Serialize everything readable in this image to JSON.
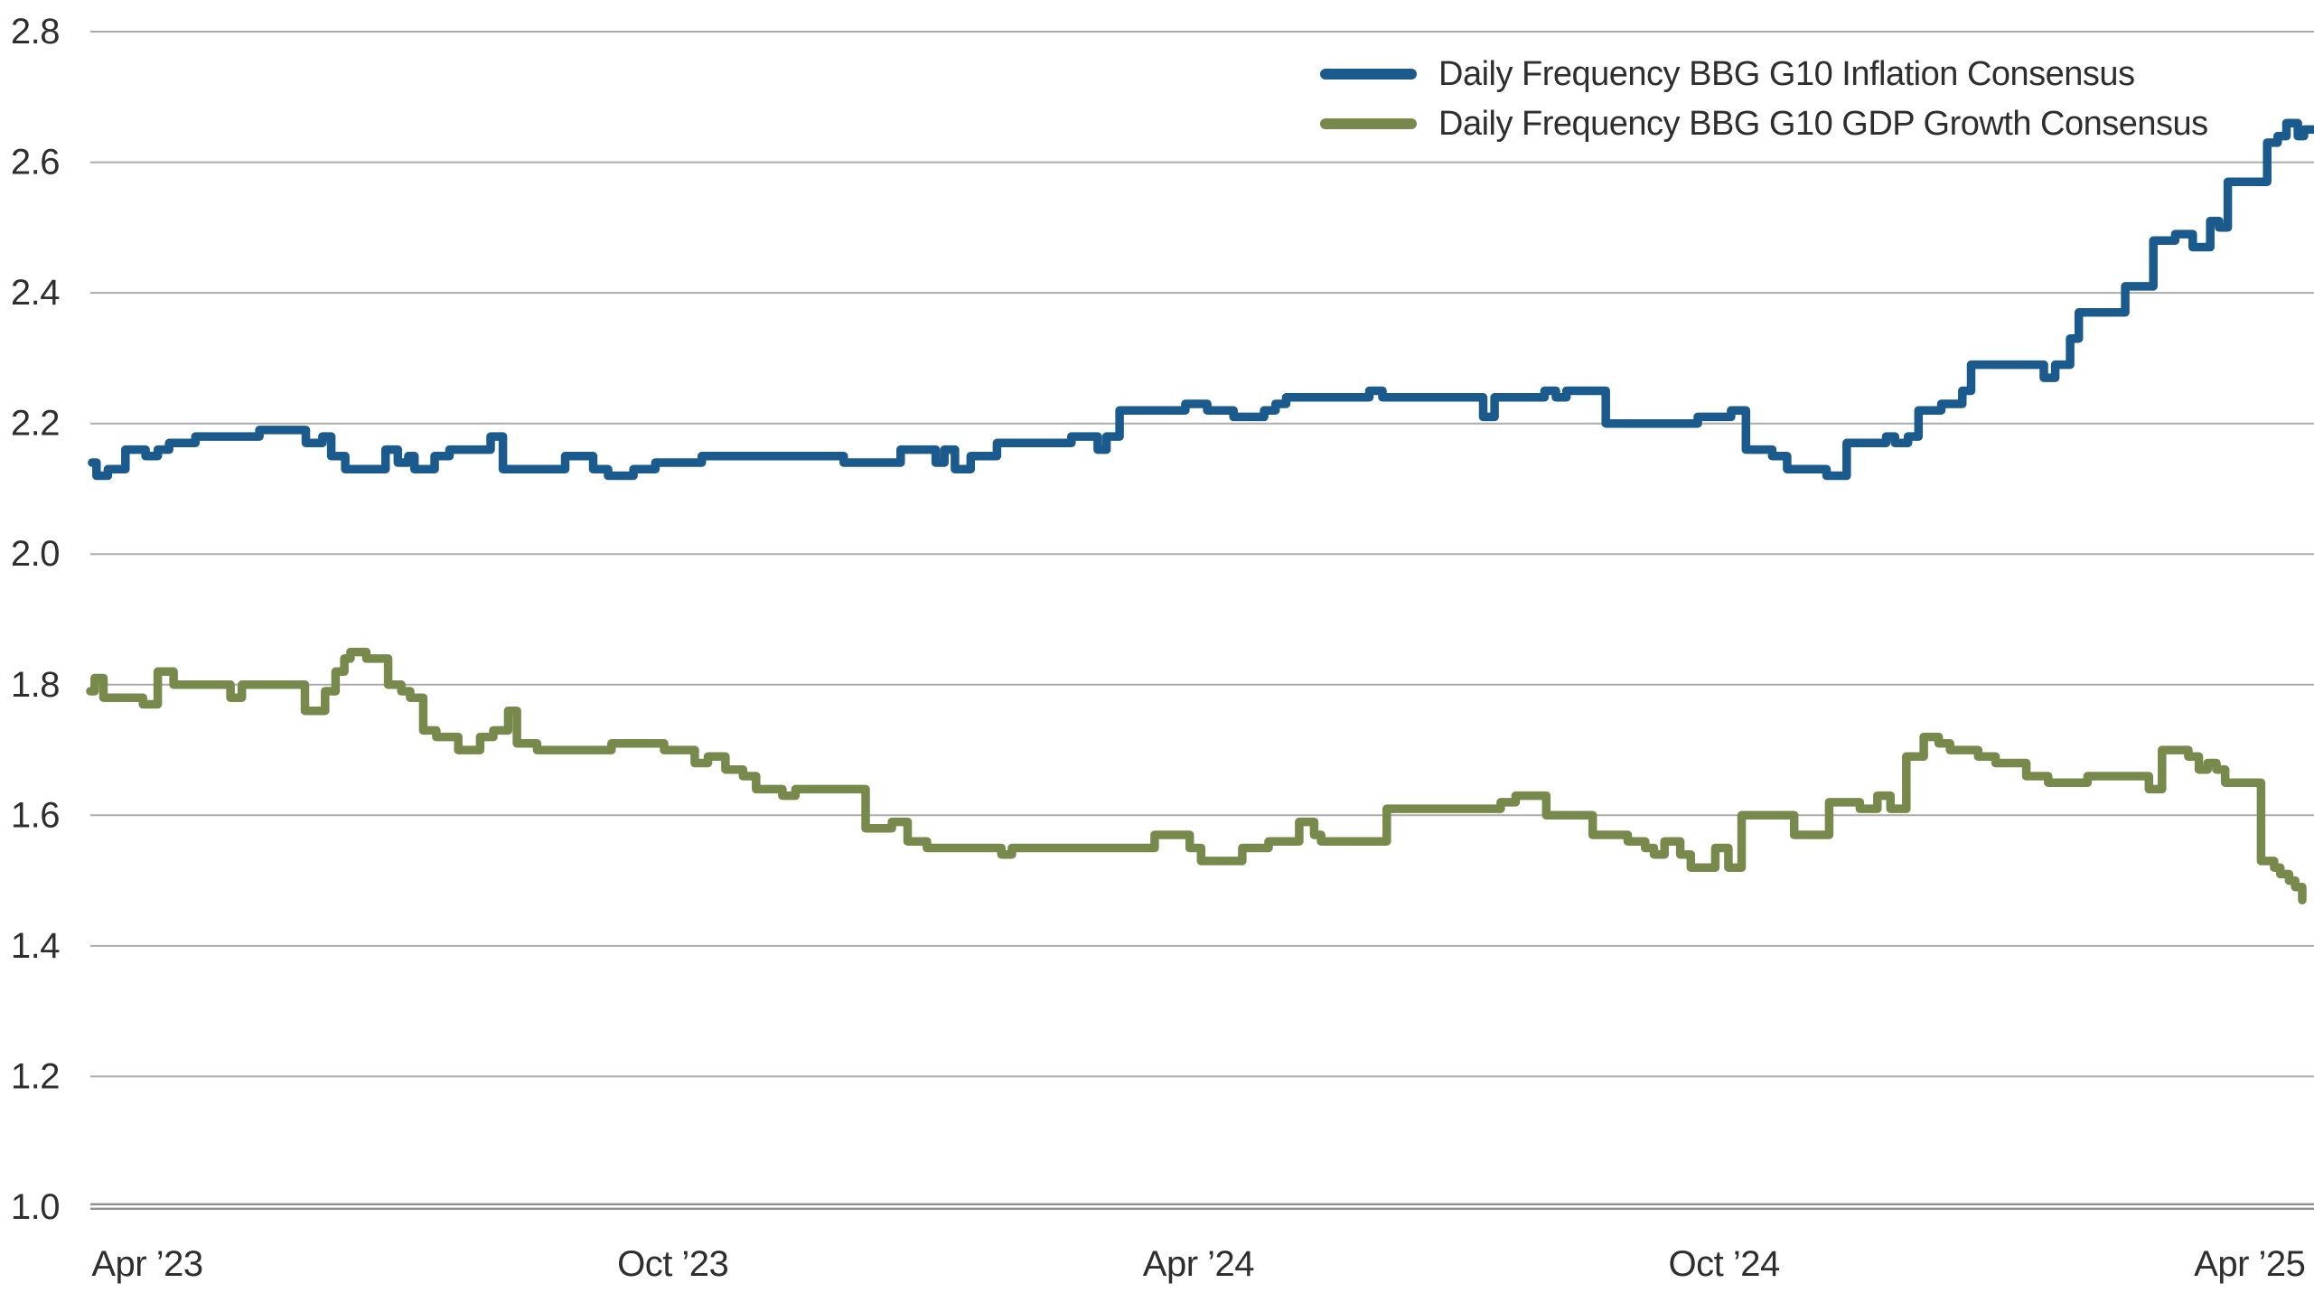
{
  "chart_data": {
    "type": "line",
    "title": "",
    "line_style": "step-after",
    "grid": "horizontal",
    "legend_position": "top-right",
    "x_axis": {
      "unit": "months from Apr 2023",
      "range": [
        -0.65,
        24.73
      ],
      "tick_months": [
        0,
        6,
        12,
        18,
        24
      ],
      "tick_labels": [
        "Apr ’23",
        "Oct ’23",
        "Apr ’24",
        "Oct ’24",
        "Apr ’25"
      ]
    },
    "y_axis": {
      "range": [
        1.0,
        2.8
      ],
      "ticks": [
        1.0,
        1.2,
        1.4,
        1.6,
        1.8,
        2.0,
        2.2,
        2.4,
        2.6,
        2.8
      ],
      "tick_labels": [
        "1.0",
        "1.2",
        "1.4",
        "1.6",
        "1.8",
        "2.0",
        "2.2",
        "2.4",
        "2.6",
        "2.8"
      ]
    },
    "series": [
      {
        "name": "Daily Frequency BBG G10 Inflation Consensus",
        "color": "#1a5a8c",
        "points": [
          [
            -0.63,
            2.14
          ],
          [
            -0.58,
            2.12
          ],
          [
            -0.45,
            2.13
          ],
          [
            -0.25,
            2.16
          ],
          [
            -0.02,
            2.15
          ],
          [
            0.12,
            2.16
          ],
          [
            0.25,
            2.17
          ],
          [
            0.55,
            2.18
          ],
          [
            1.28,
            2.19
          ],
          [
            1.81,
            2.17
          ],
          [
            2.0,
            2.18
          ],
          [
            2.1,
            2.15
          ],
          [
            2.26,
            2.13
          ],
          [
            2.72,
            2.16
          ],
          [
            2.86,
            2.14
          ],
          [
            2.98,
            2.15
          ],
          [
            3.05,
            2.13
          ],
          [
            3.28,
            2.15
          ],
          [
            3.45,
            2.16
          ],
          [
            3.92,
            2.18
          ],
          [
            4.06,
            2.13
          ],
          [
            4.77,
            2.15
          ],
          [
            5.09,
            2.13
          ],
          [
            5.26,
            2.12
          ],
          [
            5.55,
            2.13
          ],
          [
            5.8,
            2.14
          ],
          [
            6.33,
            2.15
          ],
          [
            7.95,
            2.14
          ],
          [
            8.6,
            2.16
          ],
          [
            9.0,
            2.14
          ],
          [
            9.1,
            2.16
          ],
          [
            9.22,
            2.13
          ],
          [
            9.4,
            2.15
          ],
          [
            9.7,
            2.17
          ],
          [
            10.55,
            2.18
          ],
          [
            10.85,
            2.16
          ],
          [
            10.95,
            2.18
          ],
          [
            11.1,
            2.22
          ],
          [
            11.85,
            2.23
          ],
          [
            12.1,
            2.22
          ],
          [
            12.4,
            2.21
          ],
          [
            12.75,
            2.22
          ],
          [
            12.88,
            2.23
          ],
          [
            13.0,
            2.24
          ],
          [
            13.95,
            2.25
          ],
          [
            14.1,
            2.24
          ],
          [
            15.25,
            2.21
          ],
          [
            15.38,
            2.24
          ],
          [
            15.95,
            2.25
          ],
          [
            16.08,
            2.24
          ],
          [
            16.2,
            2.25
          ],
          [
            16.65,
            2.2
          ],
          [
            17.7,
            2.21
          ],
          [
            18.08,
            2.22
          ],
          [
            18.25,
            2.16
          ],
          [
            18.55,
            2.15
          ],
          [
            18.72,
            2.13
          ],
          [
            19.17,
            2.12
          ],
          [
            19.4,
            2.17
          ],
          [
            19.85,
            2.18
          ],
          [
            19.95,
            2.17
          ],
          [
            20.1,
            2.18
          ],
          [
            20.22,
            2.22
          ],
          [
            20.48,
            2.23
          ],
          [
            20.72,
            2.25
          ],
          [
            20.82,
            2.29
          ],
          [
            21.65,
            2.27
          ],
          [
            21.78,
            2.29
          ],
          [
            21.95,
            2.33
          ],
          [
            22.05,
            2.37
          ],
          [
            22.58,
            2.41
          ],
          [
            22.9,
            2.48
          ],
          [
            23.15,
            2.49
          ],
          [
            23.35,
            2.47
          ],
          [
            23.55,
            2.51
          ],
          [
            23.65,
            2.5
          ],
          [
            23.75,
            2.57
          ],
          [
            24.2,
            2.63
          ],
          [
            24.32,
            2.64
          ],
          [
            24.42,
            2.66
          ],
          [
            24.55,
            2.64
          ],
          [
            24.62,
            2.65
          ],
          [
            24.72,
            2.65
          ]
        ]
      },
      {
        "name": "Daily Frequency BBG G10 GDP Growth Consensus",
        "color": "#78894c",
        "points": [
          [
            -0.65,
            1.79
          ],
          [
            -0.6,
            1.81
          ],
          [
            -0.5,
            1.78
          ],
          [
            -0.05,
            1.77
          ],
          [
            0.12,
            1.82
          ],
          [
            0.3,
            1.8
          ],
          [
            0.95,
            1.78
          ],
          [
            1.08,
            1.8
          ],
          [
            1.8,
            1.76
          ],
          [
            2.03,
            1.79
          ],
          [
            2.15,
            1.82
          ],
          [
            2.25,
            1.84
          ],
          [
            2.32,
            1.85
          ],
          [
            2.5,
            1.84
          ],
          [
            2.75,
            1.8
          ],
          [
            2.9,
            1.79
          ],
          [
            3.0,
            1.78
          ],
          [
            3.15,
            1.73
          ],
          [
            3.3,
            1.72
          ],
          [
            3.55,
            1.7
          ],
          [
            3.8,
            1.72
          ],
          [
            3.95,
            1.73
          ],
          [
            4.12,
            1.76
          ],
          [
            4.22,
            1.71
          ],
          [
            4.45,
            1.7
          ],
          [
            5.3,
            1.71
          ],
          [
            5.9,
            1.7
          ],
          [
            6.25,
            1.68
          ],
          [
            6.4,
            1.69
          ],
          [
            6.6,
            1.67
          ],
          [
            6.8,
            1.66
          ],
          [
            6.95,
            1.64
          ],
          [
            7.25,
            1.63
          ],
          [
            7.4,
            1.64
          ],
          [
            8.2,
            1.58
          ],
          [
            8.5,
            1.59
          ],
          [
            8.68,
            1.56
          ],
          [
            8.9,
            1.55
          ],
          [
            9.75,
            1.54
          ],
          [
            9.87,
            1.55
          ],
          [
            11.5,
            1.57
          ],
          [
            11.9,
            1.55
          ],
          [
            12.03,
            1.53
          ],
          [
            12.5,
            1.55
          ],
          [
            12.8,
            1.56
          ],
          [
            13.15,
            1.59
          ],
          [
            13.32,
            1.57
          ],
          [
            13.4,
            1.56
          ],
          [
            14.15,
            1.61
          ],
          [
            15.45,
            1.62
          ],
          [
            15.62,
            1.63
          ],
          [
            15.97,
            1.6
          ],
          [
            16.5,
            1.57
          ],
          [
            16.9,
            1.56
          ],
          [
            17.1,
            1.55
          ],
          [
            17.2,
            1.54
          ],
          [
            17.32,
            1.56
          ],
          [
            17.5,
            1.54
          ],
          [
            17.62,
            1.52
          ],
          [
            17.9,
            1.55
          ],
          [
            18.05,
            1.52
          ],
          [
            18.2,
            1.6
          ],
          [
            18.8,
            1.57
          ],
          [
            19.2,
            1.62
          ],
          [
            19.55,
            1.61
          ],
          [
            19.75,
            1.63
          ],
          [
            19.9,
            1.61
          ],
          [
            20.08,
            1.69
          ],
          [
            20.28,
            1.72
          ],
          [
            20.45,
            1.71
          ],
          [
            20.58,
            1.7
          ],
          [
            20.9,
            1.69
          ],
          [
            21.1,
            1.68
          ],
          [
            21.45,
            1.66
          ],
          [
            21.7,
            1.65
          ],
          [
            22.15,
            1.66
          ],
          [
            22.85,
            1.64
          ],
          [
            23.0,
            1.7
          ],
          [
            23.3,
            1.69
          ],
          [
            23.42,
            1.67
          ],
          [
            23.52,
            1.68
          ],
          [
            23.62,
            1.67
          ],
          [
            23.72,
            1.65
          ],
          [
            24.13,
            1.53
          ],
          [
            24.28,
            1.52
          ],
          [
            24.35,
            1.51
          ],
          [
            24.45,
            1.5
          ],
          [
            24.52,
            1.49
          ],
          [
            24.6,
            1.47
          ]
        ]
      }
    ]
  },
  "colors": {
    "background": "#ffffff",
    "grid": "#acacac",
    "axis": "#8e8e8e",
    "text": "#2e2e2e"
  },
  "geometry_note": "y gridlines every 0.2 from 1.0 to 2.8; bottom baseline doubled/thick at 1.0"
}
